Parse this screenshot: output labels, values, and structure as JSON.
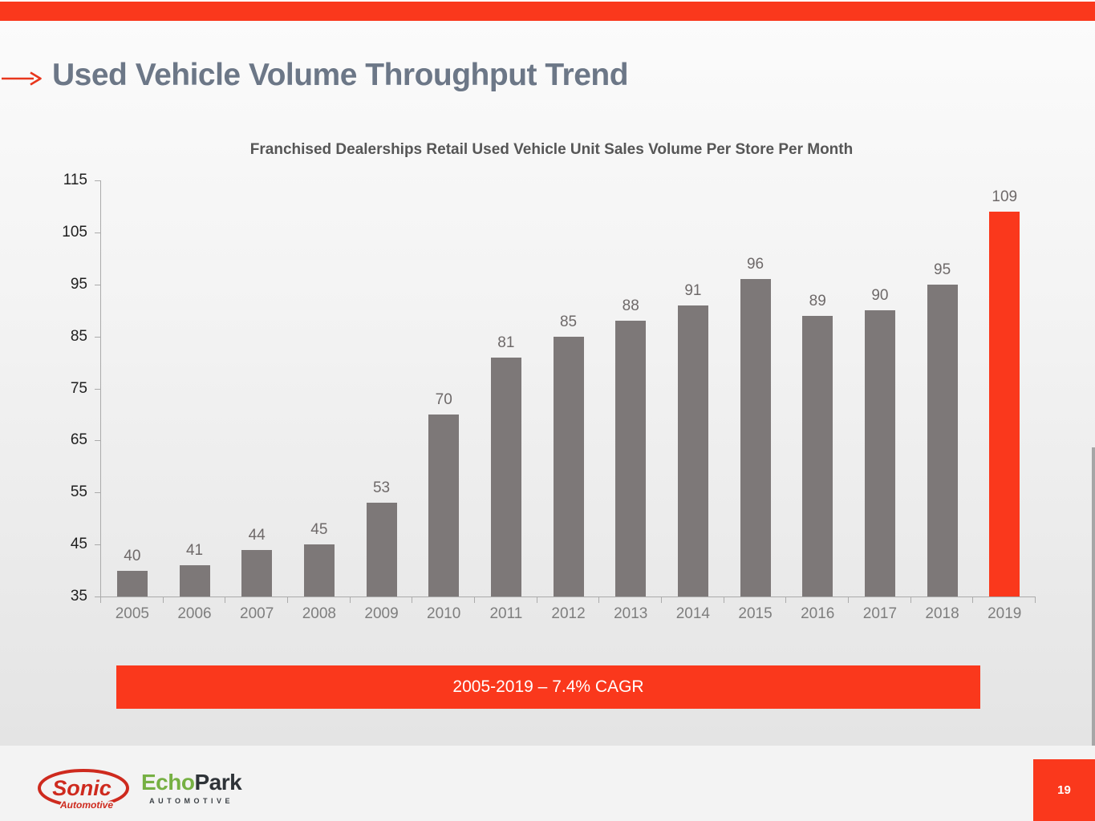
{
  "header": {
    "title": "Used Vehicle Volume Throughput Trend"
  },
  "chart_data": {
    "type": "bar",
    "title": "Franchised Dealerships Retail Used Vehicle Unit Sales Volume Per Store Per Month",
    "categories": [
      "2005",
      "2006",
      "2007",
      "2008",
      "2009",
      "2010",
      "2011",
      "2012",
      "2013",
      "2014",
      "2015",
      "2016",
      "2017",
      "2018",
      "2019"
    ],
    "values": [
      40,
      41,
      44,
      45,
      53,
      70,
      81,
      85,
      88,
      91,
      96,
      89,
      90,
      95,
      109
    ],
    "data_labels": true,
    "highlight_category": "2019",
    "highlight_index": 14,
    "xlabel": "",
    "ylabel": "",
    "ylim": [
      35,
      115
    ],
    "yticks": [
      35,
      45,
      55,
      65,
      75,
      85,
      95,
      105,
      115
    ],
    "grid": false,
    "legend": "none"
  },
  "banner": {
    "label": "2005-2019 – 7.4% CAGR"
  },
  "footer": {
    "sonic": {
      "name": "Sonic",
      "sub": "Automotive"
    },
    "echopark": {
      "part1": "Echo",
      "part2": "Park",
      "sub": "AUTOMOTIVE"
    },
    "page_number": "19"
  },
  "colors": {
    "accent": "#fa381c",
    "bar": "#7d7878",
    "title": "#6c7787",
    "sonic_red": "#ce2a1e",
    "echopark_green": "#76b043"
  }
}
